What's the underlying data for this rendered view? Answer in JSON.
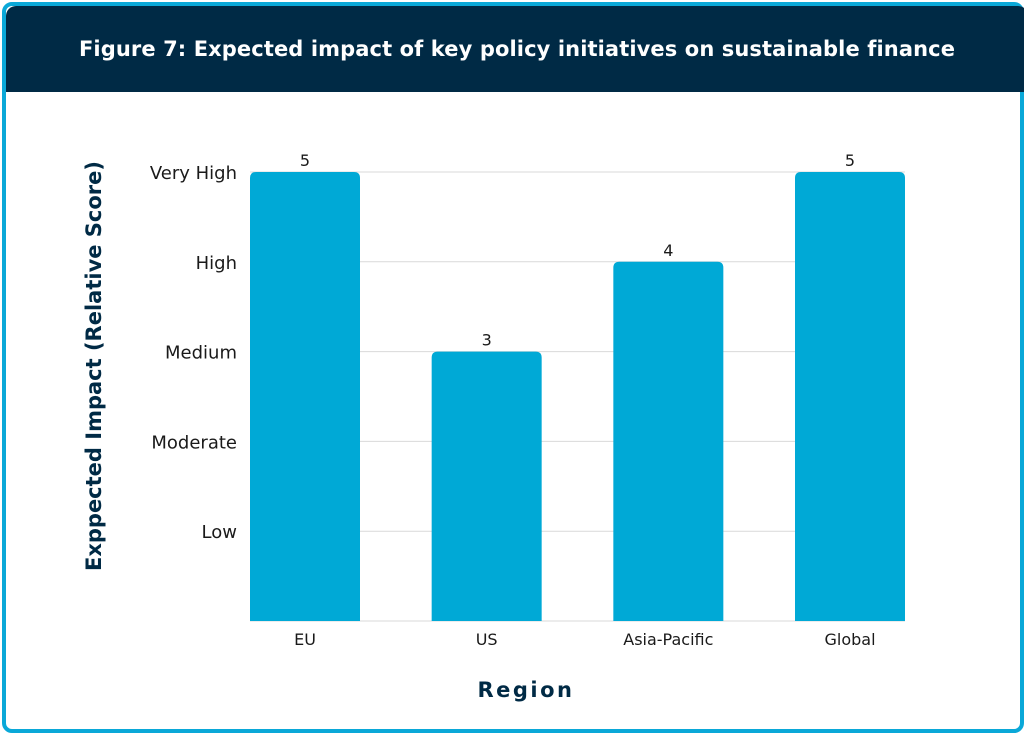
{
  "header": {
    "title": "Figure 7: Expected impact of key policy initiatives on sustainable finance"
  },
  "colors": {
    "bar": "#00a9d6",
    "title_bg": "#002a45",
    "border": "#0aa8d8",
    "grid": "#d9d9d9",
    "axis_title": "#002a45"
  },
  "chart_data": {
    "type": "bar",
    "title": "Figure 7: Expected impact of key policy initiatives on sustainable finance",
    "xlabel": "Region",
    "ylabel": "Exppected Impact (Relative Score)",
    "categories": [
      "EU",
      "US",
      "Asia-Pacific",
      "Global"
    ],
    "values": [
      5,
      3,
      4,
      5
    ],
    "data_labels": [
      "5",
      "3",
      "4",
      "5"
    ],
    "ylim": [
      0,
      5
    ],
    "y_ticks": [
      1,
      2,
      3,
      4,
      5
    ],
    "y_tick_labels": [
      "Low",
      "Moderate",
      "Medium",
      "High",
      "Very High"
    ],
    "grid": true,
    "legend": "none"
  }
}
